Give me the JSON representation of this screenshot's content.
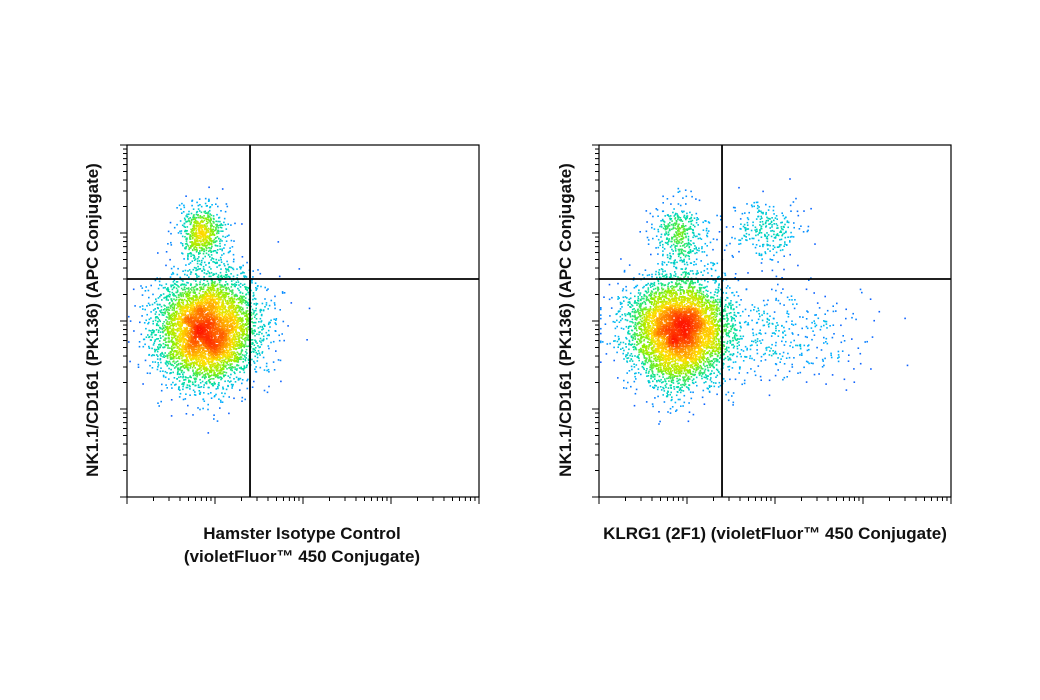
{
  "chart_data": [
    {
      "type": "scatter",
      "subtype": "flow-cytometry-density-dot-plot",
      "xlabel_lines": [
        "Hamster Isotype Control",
        "(violetFluor™ 450 Conjugate)"
      ],
      "ylabel": "NK1.1/CD161 (PK136) (APC Conjugate)",
      "x_scale": "log",
      "y_scale": "log",
      "xlim": [
        1,
        10000
      ],
      "ylim": [
        1,
        10000
      ],
      "gates": {
        "x": 25,
        "y": 300
      },
      "colormap": [
        "#1a1aff",
        "#00b4ff",
        "#00e0a0",
        "#8cf000",
        "#ffe000",
        "#ff7800",
        "#ff1400"
      ],
      "populations": [
        {
          "name": "main",
          "x_center": 8,
          "y_center": 80,
          "x_spread_decades": 0.28,
          "y_spread_decades": 0.3,
          "events": 5200
        },
        {
          "name": "nk",
          "x_center": 7,
          "y_center": 1000,
          "x_spread_decades": 0.13,
          "y_spread_decades": 0.16,
          "events": 650
        },
        {
          "name": "tail",
          "x_center": 40,
          "y_center": 120,
          "x_spread_decades": 0.25,
          "y_spread_decades": 0.25,
          "events": 40
        }
      ]
    },
    {
      "type": "scatter",
      "subtype": "flow-cytometry-density-dot-plot",
      "xlabel_lines": [
        "KLRG1 (2F1) (violetFluor™ 450 Conjugate)"
      ],
      "ylabel": "NK1.1/CD161 (PK136) (APC Conjugate)",
      "x_scale": "log",
      "y_scale": "log",
      "xlim": [
        1,
        10000
      ],
      "ylim": [
        1,
        10000
      ],
      "gates": {
        "x": 25,
        "y": 300
      },
      "colormap": [
        "#1a1aff",
        "#00b4ff",
        "#00e0a0",
        "#8cf000",
        "#ffe000",
        "#ff7800",
        "#ff1400"
      ],
      "populations": [
        {
          "name": "main",
          "x_center": 8,
          "y_center": 80,
          "x_spread_decades": 0.28,
          "y_spread_decades": 0.3,
          "events": 5200
        },
        {
          "name": "nk_klrg1_neg",
          "x_center": 8,
          "y_center": 1000,
          "x_spread_decades": 0.15,
          "y_spread_decades": 0.2,
          "events": 420
        },
        {
          "name": "nk_klrg1_pos",
          "x_center": 80,
          "y_center": 1100,
          "x_spread_decades": 0.2,
          "y_spread_decades": 0.17,
          "events": 260
        },
        {
          "name": "klrg1_pos_low",
          "x_center": 100,
          "y_center": 70,
          "x_spread_decades": 0.45,
          "y_spread_decades": 0.3,
          "events": 380
        }
      ]
    }
  ]
}
